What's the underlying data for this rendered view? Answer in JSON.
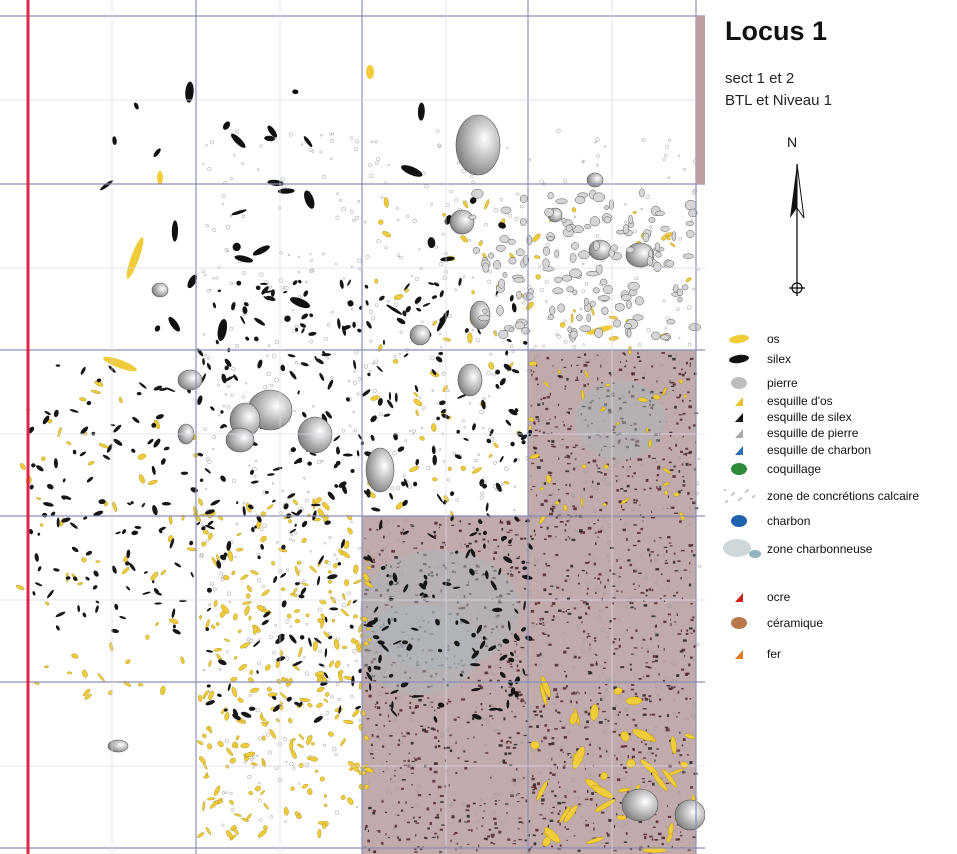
{
  "map": {
    "title": "Locus 1",
    "subtitle_line1": "sect 1 et 2",
    "subtitle_line2": "BTL et Niveau 1",
    "north_label": "N"
  },
  "legend": [
    {
      "label": "os",
      "icon": "yellow-bone-blob",
      "color": "#f0cc3a"
    },
    {
      "label": "silex",
      "icon": "black-flint-blob",
      "color": "#111111"
    },
    {
      "label": "pierre",
      "icon": "grey-stone-blob",
      "color": "#bdbdbd"
    },
    {
      "label": "esquille d'os",
      "icon": "yellow-triangle",
      "color": "#e8c030"
    },
    {
      "label": "esquille de silex",
      "icon": "black-triangle",
      "color": "#111111"
    },
    {
      "label": "esquille de pierre",
      "icon": "grey-triangle",
      "color": "#aaaaaa"
    },
    {
      "label": "esquille de charbon",
      "icon": "blue-triangle",
      "color": "#2a6fb0"
    },
    {
      "label": "coquillage",
      "icon": "green-blob",
      "color": "#2e8b3a"
    },
    {
      "label": "zone de concrétions calcaire",
      "icon": "dotted-patch",
      "color": "#cfcfcf"
    },
    {
      "label": "charbon",
      "icon": "blue-blob",
      "color": "#1f64ad"
    },
    {
      "label": "zone charbonneuse",
      "icon": "grey-cloud",
      "color": "#b9c8cc"
    },
    {
      "label": "ocre",
      "icon": "red-triangle",
      "color": "#cc2222"
    },
    {
      "label": "céramique",
      "icon": "brown-blob",
      "color": "#b87a4b"
    },
    {
      "label": "fer",
      "icon": "orange-triangle",
      "color": "#e07a1f"
    }
  ],
  "colors": {
    "grid_line": "#8a8fb8",
    "baseline": "#e0244a",
    "dark_zone": "#b69b9c",
    "bone": "#f0cc3a"
  }
}
